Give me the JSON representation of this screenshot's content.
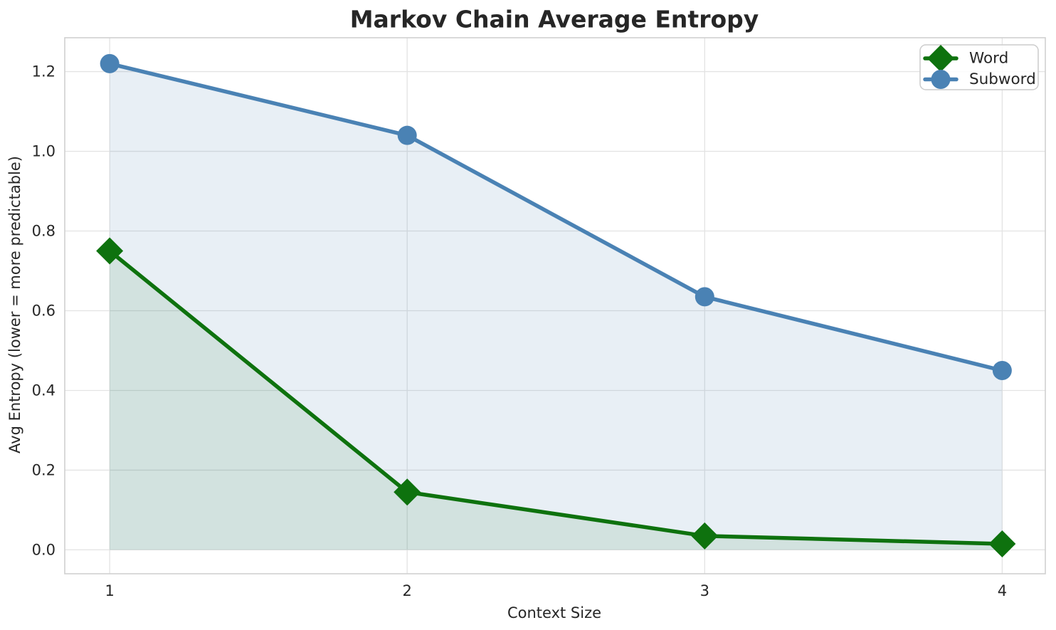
{
  "chart_data": {
    "type": "line",
    "title": "Markov Chain Average Entropy",
    "xlabel": "Context Size",
    "ylabel": "Avg Entropy (lower = more predictable)",
    "x": [
      1,
      2,
      3,
      4
    ],
    "series": [
      {
        "name": "Word",
        "values": [
          0.75,
          0.145,
          0.035,
          0.015
        ],
        "color": "#0e720e",
        "marker": "diamond",
        "area_fill": true,
        "fill_opacity": 0.1
      },
      {
        "name": "Subword",
        "values": [
          1.22,
          1.04,
          0.635,
          0.45
        ],
        "color": "#4a82b4",
        "marker": "circle",
        "area_fill": true,
        "fill_opacity": 0.13
      }
    ],
    "fill_baseline": 0,
    "xlim": [
      0.849,
      4.145
    ],
    "ylim": [
      -0.06,
      1.285
    ],
    "x_ticks": {
      "values": [
        1,
        2,
        3,
        4
      ],
      "labels": [
        "1",
        "2",
        "3",
        "4"
      ]
    },
    "y_ticks": {
      "values": [
        0.0,
        0.2,
        0.4,
        0.6,
        0.8,
        1.0,
        1.2
      ],
      "labels": [
        "0.0",
        "0.2",
        "0.4",
        "0.6",
        "0.8",
        "1.0",
        "1.2"
      ]
    },
    "grid": true,
    "legend": {
      "position": "upper right",
      "entries": [
        "Word",
        "Subword"
      ]
    },
    "colors": {
      "text": "#262626",
      "grid": "#e3e3e3",
      "spine": "#d0d0d0",
      "background": "#ffffff",
      "legend_border": "#cccccc",
      "legend_background": "#ffffff"
    }
  }
}
